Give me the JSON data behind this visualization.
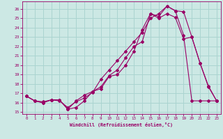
{
  "xlabel": "Windchill (Refroidissement éolien,°C)",
  "bg_color": "#cce8e4",
  "grid_color": "#aad4d0",
  "line_color": "#990066",
  "xlim": [
    -0.5,
    23.5
  ],
  "ylim": [
    14.8,
    26.8
  ],
  "yticks": [
    15,
    16,
    17,
    18,
    19,
    20,
    21,
    22,
    23,
    24,
    25,
    26
  ],
  "xticks": [
    0,
    1,
    2,
    3,
    4,
    5,
    6,
    7,
    8,
    9,
    10,
    11,
    12,
    13,
    14,
    15,
    16,
    17,
    18,
    19,
    20,
    21,
    22,
    23
  ],
  "line1_x": [
    0,
    1,
    2,
    3,
    4,
    5,
    6,
    7,
    8,
    9,
    10,
    11,
    12,
    13,
    14,
    15,
    16,
    17,
    18,
    19,
    20,
    21,
    22,
    23
  ],
  "line1_y": [
    16.7,
    16.2,
    16.0,
    16.3,
    16.3,
    15.3,
    15.5,
    16.2,
    17.2,
    17.5,
    18.8,
    19.0,
    20.0,
    21.5,
    23.8,
    25.5,
    25.2,
    26.3,
    25.8,
    25.7,
    23.0,
    20.2,
    17.7,
    16.2
  ],
  "line2_x": [
    0,
    1,
    2,
    3,
    4,
    5,
    6,
    7,
    8,
    9,
    10,
    11,
    12,
    13,
    14,
    15,
    16,
    17,
    18,
    19,
    20,
    21,
    22,
    23
  ],
  "line2_y": [
    16.7,
    16.2,
    16.0,
    16.3,
    16.2,
    15.5,
    16.1,
    16.5,
    17.1,
    18.5,
    19.5,
    20.5,
    21.5,
    22.5,
    23.5,
    25.0,
    25.5,
    26.3,
    25.8,
    23.2,
    16.2,
    16.2,
    16.2,
    16.2
  ],
  "line3_x": [
    0,
    1,
    2,
    3,
    4,
    5,
    6,
    7,
    8,
    9,
    10,
    11,
    12,
    13,
    14,
    15,
    16,
    17,
    18,
    19,
    20,
    21,
    22,
    23
  ],
  "line3_y": [
    16.7,
    16.2,
    16.1,
    16.3,
    16.3,
    15.3,
    16.2,
    16.8,
    17.2,
    17.7,
    18.9,
    19.5,
    20.8,
    22.0,
    22.5,
    25.5,
    25.0,
    25.5,
    25.1,
    22.8,
    23.0,
    20.2,
    17.8,
    16.2
  ]
}
